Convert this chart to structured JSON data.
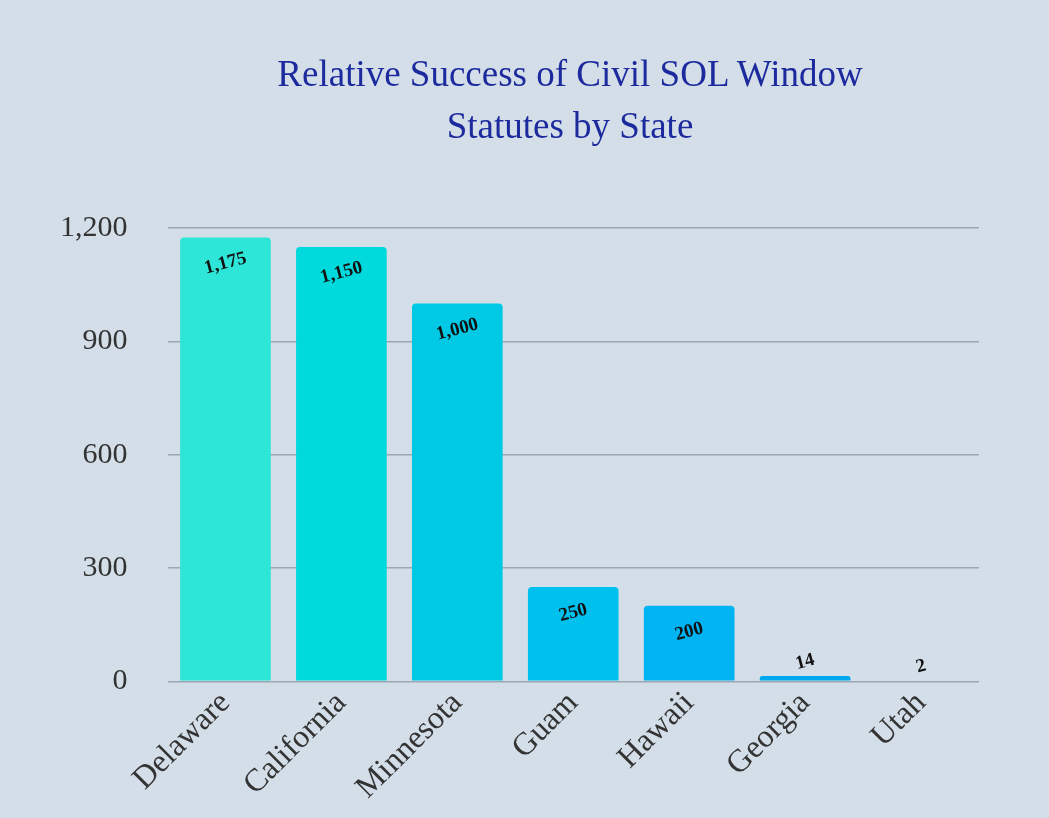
{
  "chart_data": {
    "type": "bar",
    "title": "Relative Success of Civil SOL Window Statutes by State",
    "categories": [
      "Delaware",
      "California",
      "Minnesota",
      "Guam",
      "Hawaii",
      "Georgia",
      "Utah"
    ],
    "values": [
      1175,
      1150,
      1000,
      250,
      200,
      14,
      2
    ],
    "value_labels": [
      "1,175",
      "1,150",
      "1,000",
      "250",
      "200",
      "14",
      "2"
    ],
    "colors": [
      "#2ee6d8",
      "#00dadd",
      "#00c9e6",
      "#00c1ee",
      "#00b3f2",
      "#00a9ef",
      "#5ab6e0"
    ],
    "ylim": [
      0,
      1200
    ],
    "yticks": [
      0,
      300,
      600,
      900,
      {
        "value": 1200,
        "label": "1,200"
      }
    ],
    "grid": "y"
  }
}
